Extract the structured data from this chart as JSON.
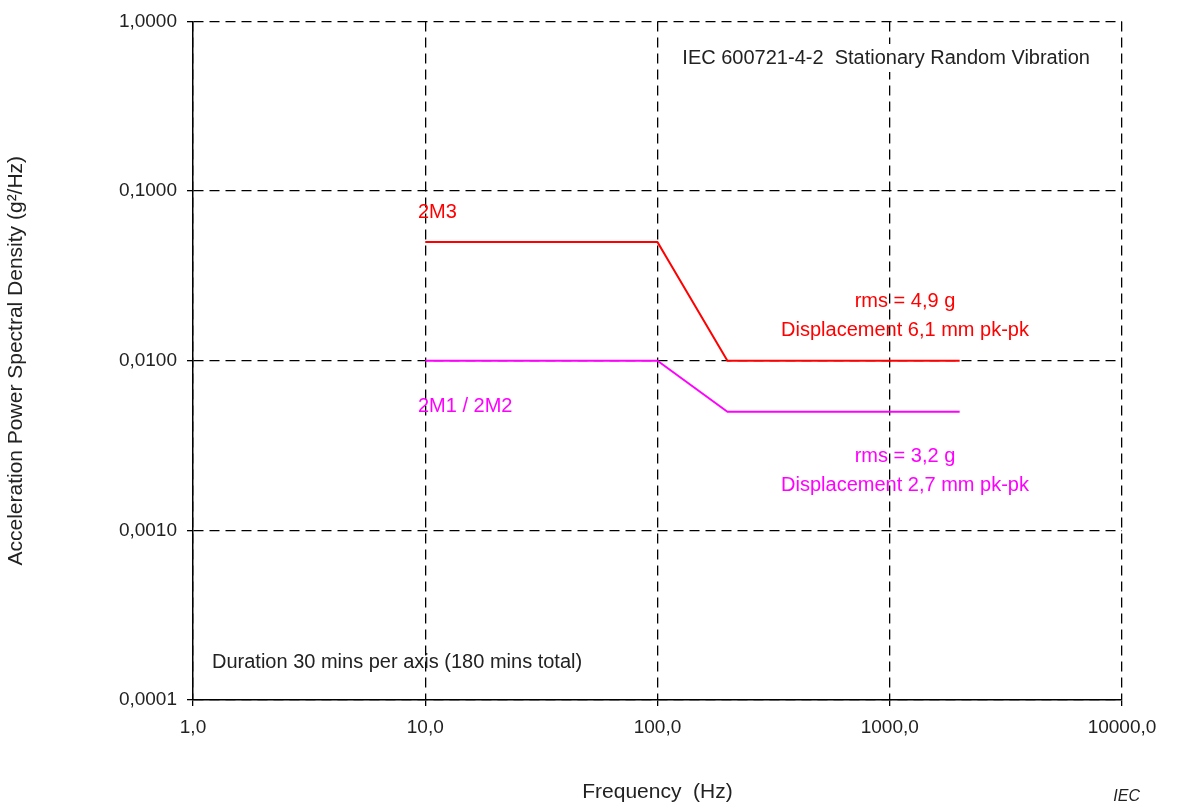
{
  "chart_data": {
    "type": "line",
    "title": "IEC 600721-4-2  Stationary Random Vibration",
    "xlabel": "Frequency  (Hz)",
    "ylabel": "Acceleration Power Spectral Density (g²/Hz)",
    "log": "xy",
    "grid": true,
    "legend": false,
    "marker": "none",
    "line_style": "solid",
    "xlim": [
      1,
      10000
    ],
    "ylim": [
      0.0001,
      1
    ],
    "xticks": [
      {
        "value": 1,
        "label": "1,0"
      },
      {
        "value": 10,
        "label": "10,0"
      },
      {
        "value": 100,
        "label": "100,0"
      },
      {
        "value": 1000,
        "label": "1000,0"
      },
      {
        "value": 10000,
        "label": "10000,0"
      }
    ],
    "yticks": [
      {
        "value": 0.0001,
        "label": "0,0001"
      },
      {
        "value": 0.001,
        "label": "0,0010"
      },
      {
        "value": 0.01,
        "label": "0,0100"
      },
      {
        "value": 0.1,
        "label": "0,1000"
      },
      {
        "value": 1,
        "label": "1,0000"
      }
    ],
    "series": [
      {
        "name": "2M3",
        "color": "#ff0000",
        "x": [
          10,
          100,
          200,
          2000
        ],
        "values": [
          0.05,
          0.05,
          0.01,
          0.01
        ]
      },
      {
        "name": "2M1 / 2M2",
        "color": "#ff00ff",
        "x": [
          10,
          100,
          200,
          2000
        ],
        "values": [
          0.01,
          0.01,
          0.005,
          0.005
        ]
      }
    ],
    "annotations": [
      "rms = 4,9 g",
      "Displacement 6,1 mm pk-pk",
      "rms = 3,2 g",
      "Displacement 2,7 mm pk-pk",
      "Duration 30 mins per axis (180 mins total)",
      "IEC"
    ]
  }
}
